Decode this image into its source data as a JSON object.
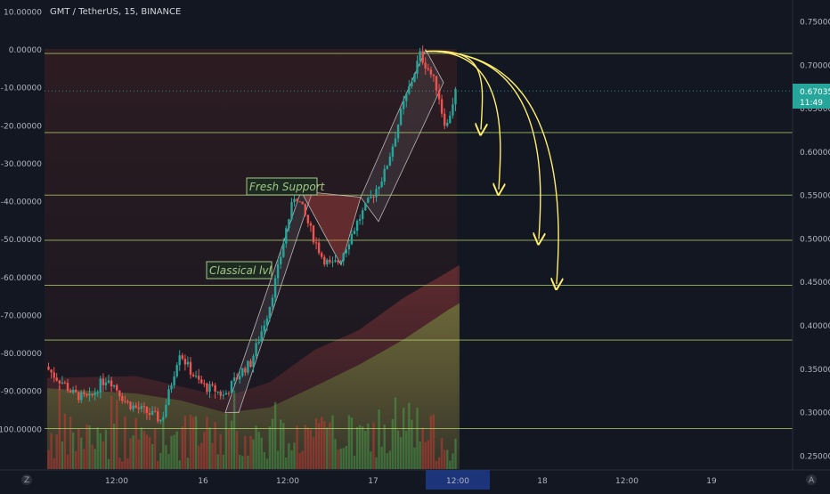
{
  "chart_title": "GMT / TetherUS, 15, BINANCE",
  "colors": {
    "background": "#131722",
    "bull": "#26a69a",
    "bear": "#ef5350",
    "level_line": "#b5d86a",
    "arrow": "#ffee70",
    "price_badge": "#26a69a",
    "annotation": "#a5c785"
  },
  "current_price": {
    "price": "0.67035",
    "countdown": "11:49"
  },
  "icons": {
    "left_corner": "Z",
    "right_corner": "A"
  },
  "annotations": [
    {
      "id": "fresh-support",
      "text": "Fresh Support"
    },
    {
      "id": "classical-lvl",
      "text": "Classical lvl"
    }
  ],
  "chart_data": {
    "type": "candlestick",
    "title": "GMT / TetherUS, 15, BINANCE",
    "grid": false,
    "y_right_ticks": [
      "0.75000",
      "0.70000",
      "0.65000",
      "0.60000",
      "0.55000",
      "0.50000",
      "0.45000",
      "0.40000",
      "0.35000",
      "0.30000",
      "0.25000"
    ],
    "y_right_range": [
      0.235,
      0.77
    ],
    "y_left_ticks": [
      "10.00000",
      "0.00000",
      "-10.00000",
      "-20.00000",
      "-30.00000",
      "-40.00000",
      "-50.00000",
      "-60.00000",
      "-70.00000",
      "-80.00000",
      "-90.00000",
      "-100.00000"
    ],
    "y_left_range": [
      -110.5,
      12
    ],
    "x_ticks": [
      "12:00",
      "16",
      "12:00",
      "17",
      "12:00",
      "18",
      "12:00",
      "19"
    ],
    "horizontal_levels": [
      0.7135,
      0.6225,
      0.5505,
      0.4985,
      0.4465,
      0.3835,
      0.2815
    ],
    "price_path": [
      [
        0,
        0.353
      ],
      [
        10,
        0.342
      ],
      [
        20,
        0.334
      ],
      [
        30,
        0.322
      ],
      [
        40,
        0.318
      ],
      [
        50,
        0.316
      ],
      [
        60,
        0.332
      ],
      [
        70,
        0.341
      ],
      [
        80,
        0.327
      ],
      [
        90,
        0.312
      ],
      [
        100,
        0.306
      ],
      [
        110,
        0.302
      ],
      [
        120,
        0.297
      ],
      [
        130,
        0.291
      ],
      [
        140,
        0.33
      ],
      [
        150,
        0.371
      ],
      [
        160,
        0.352
      ],
      [
        170,
        0.337
      ],
      [
        180,
        0.329
      ],
      [
        190,
        0.326
      ],
      [
        200,
        0.319
      ],
      [
        210,
        0.334
      ],
      [
        220,
        0.348
      ],
      [
        230,
        0.357
      ],
      [
        240,
        0.387
      ],
      [
        250,
        0.418
      ],
      [
        260,
        0.462
      ],
      [
        270,
        0.512
      ],
      [
        280,
        0.553
      ],
      [
        290,
        0.53
      ],
      [
        300,
        0.503
      ],
      [
        310,
        0.48
      ],
      [
        320,
        0.468
      ],
      [
        330,
        0.476
      ],
      [
        340,
        0.498
      ],
      [
        350,
        0.52
      ],
      [
        360,
        0.538
      ],
      [
        370,
        0.556
      ],
      [
        380,
        0.575
      ],
      [
        390,
        0.61
      ],
      [
        400,
        0.65
      ],
      [
        410,
        0.68
      ],
      [
        420,
        0.712
      ],
      [
        430,
        0.695
      ],
      [
        440,
        0.672
      ],
      [
        445,
        0.645
      ],
      [
        450,
        0.628
      ],
      [
        455,
        0.65
      ],
      [
        460,
        0.67
      ]
    ],
    "series": [
      {
        "name": "",
        "kind": "band",
        "color": "#ef5350",
        "points": [
          [
            0,
            0.34
          ],
          [
            100,
            0.342
          ],
          [
            150,
            0.33
          ],
          [
            200,
            0.318
          ],
          [
            250,
            0.335
          ],
          [
            300,
            0.372
          ],
          [
            350,
            0.395
          ],
          [
            400,
            0.432
          ],
          [
            450,
            0.462
          ],
          [
            463,
            0.47
          ]
        ]
      },
      {
        "name": "",
        "kind": "band",
        "color": "#8bc34a",
        "points": [
          [
            0,
            0.328
          ],
          [
            100,
            0.322
          ],
          [
            150,
            0.314
          ],
          [
            200,
            0.3
          ],
          [
            250,
            0.306
          ],
          [
            300,
            0.33
          ],
          [
            350,
            0.355
          ],
          [
            400,
            0.384
          ],
          [
            450,
            0.418
          ],
          [
            463,
            0.426
          ]
        ]
      }
    ]
  }
}
